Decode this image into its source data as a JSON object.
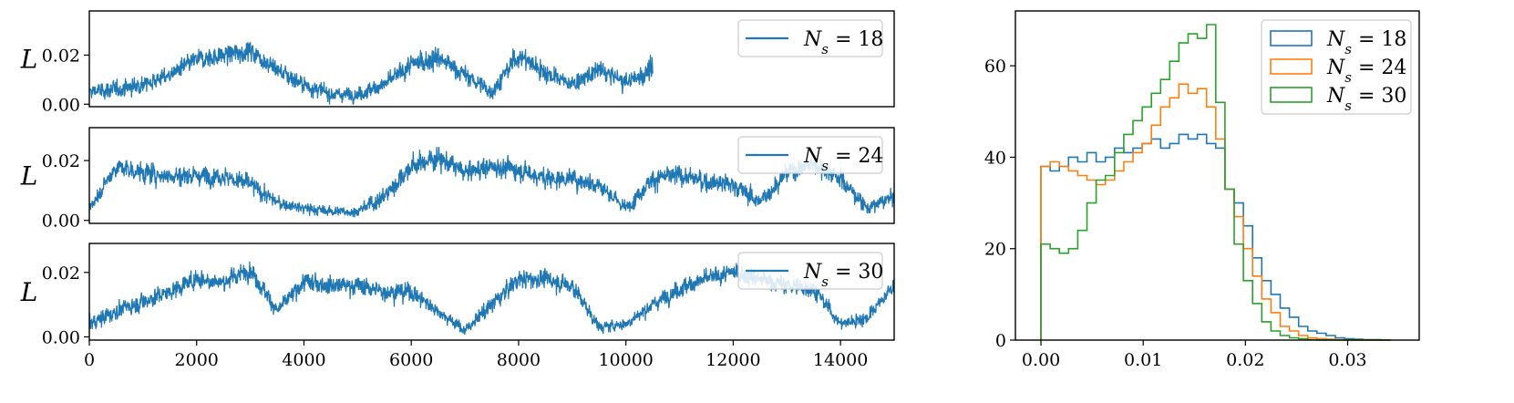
{
  "colors": {
    "blue": "#1f77b4",
    "orange": "#ff7f0e",
    "green": "#2ca02c"
  },
  "chart_data": [
    {
      "type": "line",
      "panel": "trace",
      "ylabel": "L",
      "legend_label": "N_s = 18",
      "legend_parts": {
        "var": "N",
        "sub": "s",
        "eq": " = 18"
      },
      "xlim": [
        0,
        15000
      ],
      "ylim": [
        -0.001,
        0.038
      ],
      "yticks": [
        0.0,
        0.02
      ],
      "ytick_labels": [
        "0.00",
        "0.02"
      ],
      "xticks_visible": false,
      "legend_position": "upper right",
      "x_extent": [
        0,
        10500
      ],
      "envelope": {
        "x": [
          0,
          500,
          1000,
          1500,
          2000,
          2500,
          3000,
          3500,
          4000,
          4500,
          5000,
          5500,
          6000,
          6500,
          7000,
          7500,
          8000,
          8500,
          9000,
          9500,
          10000,
          10500
        ],
        "mean": [
          0.005,
          0.006,
          0.008,
          0.012,
          0.018,
          0.02,
          0.022,
          0.014,
          0.008,
          0.004,
          0.004,
          0.008,
          0.016,
          0.019,
          0.012,
          0.005,
          0.02,
          0.013,
          0.008,
          0.014,
          0.009,
          0.014
        ],
        "amp": [
          0.006,
          0.006,
          0.006,
          0.006,
          0.007,
          0.007,
          0.008,
          0.007,
          0.006,
          0.005,
          0.005,
          0.006,
          0.008,
          0.008,
          0.007,
          0.006,
          0.008,
          0.007,
          0.006,
          0.007,
          0.007,
          0.007
        ]
      }
    },
    {
      "type": "line",
      "panel": "trace",
      "ylabel": "L",
      "legend_label": "N_s = 24",
      "legend_parts": {
        "var": "N",
        "sub": "s",
        "eq": " = 24"
      },
      "xlim": [
        0,
        15000
      ],
      "ylim": [
        -0.001,
        0.031
      ],
      "yticks": [
        0.0,
        0.02
      ],
      "ytick_labels": [
        "0.00",
        "0.02"
      ],
      "xticks_visible": false,
      "legend_position": "upper right",
      "x_extent": [
        0,
        15000
      ],
      "envelope": {
        "x": [
          0,
          500,
          1000,
          1500,
          2000,
          2500,
          3000,
          3500,
          4000,
          4500,
          5000,
          5500,
          6000,
          6500,
          7000,
          7500,
          8000,
          8500,
          9000,
          9500,
          10000,
          10500,
          11000,
          11500,
          12000,
          12500,
          13000,
          13500,
          14000,
          14500,
          15000
        ],
        "mean": [
          0.004,
          0.018,
          0.016,
          0.015,
          0.015,
          0.015,
          0.012,
          0.006,
          0.004,
          0.003,
          0.003,
          0.008,
          0.018,
          0.021,
          0.016,
          0.018,
          0.017,
          0.014,
          0.014,
          0.012,
          0.004,
          0.014,
          0.015,
          0.013,
          0.012,
          0.006,
          0.016,
          0.019,
          0.014,
          0.004,
          0.008
        ],
        "amp": [
          0.004,
          0.006,
          0.006,
          0.006,
          0.006,
          0.006,
          0.006,
          0.004,
          0.003,
          0.003,
          0.003,
          0.006,
          0.006,
          0.007,
          0.006,
          0.006,
          0.006,
          0.006,
          0.006,
          0.006,
          0.004,
          0.006,
          0.006,
          0.006,
          0.006,
          0.005,
          0.006,
          0.006,
          0.006,
          0.004,
          0.004
        ]
      }
    },
    {
      "type": "line",
      "panel": "trace",
      "ylabel": "L",
      "legend_label": "N_s = 30",
      "legend_parts": {
        "var": "N",
        "sub": "s",
        "eq": " = 30"
      },
      "xlim": [
        0,
        15000
      ],
      "ylim": [
        -0.001,
        0.029
      ],
      "yticks": [
        0.0,
        0.02
      ],
      "ytick_labels": [
        "0.00",
        "0.02"
      ],
      "xticks": [
        0,
        2000,
        4000,
        6000,
        8000,
        10000,
        12000,
        14000
      ],
      "xtick_labels": [
        "0",
        "2000",
        "4000",
        "6000",
        "8000",
        "10000",
        "12000",
        "14000"
      ],
      "xticks_visible": true,
      "legend_position": "upper right",
      "x_extent": [
        0,
        15000
      ],
      "envelope": {
        "x": [
          0,
          500,
          1000,
          1500,
          2000,
          2500,
          3000,
          3500,
          4000,
          4500,
          5000,
          5500,
          6000,
          6500,
          7000,
          7500,
          8000,
          8500,
          9000,
          9500,
          10000,
          10500,
          11000,
          11500,
          12000,
          12500,
          13000,
          13500,
          14000,
          14500,
          15000
        ],
        "mean": [
          0.004,
          0.008,
          0.011,
          0.014,
          0.018,
          0.017,
          0.021,
          0.008,
          0.017,
          0.016,
          0.016,
          0.014,
          0.014,
          0.008,
          0.002,
          0.01,
          0.018,
          0.018,
          0.016,
          0.003,
          0.004,
          0.01,
          0.015,
          0.018,
          0.02,
          0.018,
          0.016,
          0.015,
          0.004,
          0.006,
          0.016
        ],
        "amp": [
          0.004,
          0.005,
          0.005,
          0.005,
          0.005,
          0.005,
          0.005,
          0.004,
          0.005,
          0.005,
          0.005,
          0.005,
          0.005,
          0.004,
          0.003,
          0.005,
          0.005,
          0.005,
          0.005,
          0.003,
          0.003,
          0.004,
          0.005,
          0.005,
          0.005,
          0.005,
          0.005,
          0.005,
          0.003,
          0.004,
          0.004
        ]
      }
    },
    {
      "type": "histogram",
      "panel": "hist",
      "xlim": [
        -0.0025,
        0.037
      ],
      "ylim": [
        0,
        72
      ],
      "xticks": [
        0.0,
        0.01,
        0.02,
        0.03
      ],
      "xtick_labels": [
        "0.00",
        "0.01",
        "0.02",
        "0.03"
      ],
      "yticks": [
        0,
        20,
        40,
        60
      ],
      "ytick_labels": [
        "0",
        "20",
        "40",
        "60"
      ],
      "legend_position": "upper right",
      "bin_start": 0.0,
      "bin_width": 0.0009,
      "series": [
        {
          "name": "N_s = 18",
          "legend_parts": {
            "var": "N",
            "sub": "s",
            "eq": " = 18"
          },
          "color": "#1f77b4",
          "values": [
            38,
            37,
            38,
            40,
            39,
            41,
            39,
            40,
            42,
            41,
            42,
            43,
            44,
            42,
            43,
            45,
            44,
            45,
            43,
            42,
            33,
            30,
            25,
            18,
            13,
            10,
            7,
            5,
            3,
            2,
            1.5,
            1,
            0.5,
            0.3,
            0.2,
            0.1,
            0.1,
            0
          ]
        },
        {
          "name": "N_s = 24",
          "legend_parts": {
            "var": "N",
            "sub": "s",
            "eq": " = 24"
          },
          "color": "#ff7f0e",
          "values": [
            38,
            39,
            38,
            37,
            36,
            35,
            34,
            35,
            37,
            39,
            41,
            43,
            47,
            51,
            53,
            56,
            54,
            55,
            51,
            44,
            33,
            27,
            20,
            14,
            9,
            6,
            3,
            2,
            1,
            0.5,
            0.3,
            0.2,
            0.1,
            0,
            0,
            0,
            0,
            0
          ]
        },
        {
          "name": "N_s = 30",
          "legend_parts": {
            "var": "N",
            "sub": "s",
            "eq": " = 30"
          },
          "color": "#2ca02c",
          "values": [
            21,
            20,
            19,
            20,
            24,
            30,
            35,
            36,
            41,
            45,
            48,
            51,
            54,
            57,
            61,
            65,
            67,
            66,
            69,
            52,
            33,
            21,
            13,
            8,
            4,
            2,
            1,
            0.5,
            0.3,
            0.1,
            0,
            0,
            0,
            0,
            0,
            0,
            0,
            0
          ]
        }
      ]
    }
  ]
}
